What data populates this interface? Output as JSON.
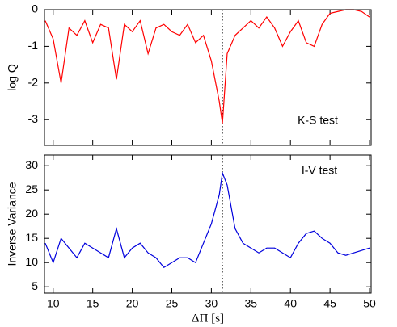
{
  "chart_data": [
    {
      "type": "line",
      "ylabel": "log Q",
      "annotation": "K-S test",
      "x": [
        9,
        10,
        11,
        12,
        13,
        14,
        15,
        16,
        17,
        18,
        19,
        20,
        21,
        22,
        23,
        24,
        25,
        26,
        27,
        28,
        29,
        30,
        31,
        31.4,
        32,
        33,
        34,
        35,
        36,
        37,
        38,
        39,
        40,
        41,
        42,
        43,
        44,
        45,
        46,
        47,
        48,
        49,
        50
      ],
      "series": [
        {
          "color": "#ff0000",
          "values": [
            -0.3,
            -0.8,
            -2.0,
            -0.5,
            -0.7,
            -0.3,
            -0.9,
            -0.4,
            -0.5,
            -1.9,
            -0.4,
            -0.6,
            -0.3,
            -1.2,
            -0.5,
            -0.4,
            -0.6,
            -0.7,
            -0.4,
            -0.9,
            -0.7,
            -1.4,
            -2.5,
            -3.1,
            -1.2,
            -0.7,
            -0.5,
            -0.3,
            -0.5,
            -0.2,
            -0.5,
            -1.0,
            -0.6,
            -0.3,
            -0.9,
            -1.0,
            -0.4,
            -0.1,
            -0.05,
            0,
            0,
            -0.05,
            -0.2
          ]
        }
      ],
      "xlim": [
        8.9,
        50.2
      ],
      "xticks": [
        10,
        15,
        20,
        25,
        30,
        35,
        40,
        45,
        50
      ],
      "ylim": [
        -3.7,
        0
      ],
      "yticks": [
        0,
        -1,
        -2,
        -3
      ],
      "vline": 31.4
    },
    {
      "type": "line",
      "ylabel": "Inverse Variance",
      "xlabel": "ΔΠ [s]",
      "annotation": "I-V test",
      "x": [
        9,
        10,
        11,
        12,
        13,
        14,
        15,
        16,
        17,
        18,
        19,
        20,
        21,
        22,
        23,
        24,
        25,
        26,
        27,
        28,
        29,
        30,
        31,
        31.4,
        32,
        33,
        34,
        35,
        36,
        37,
        38,
        39,
        40,
        41,
        42,
        43,
        44,
        45,
        46,
        47,
        48,
        49,
        50
      ],
      "series": [
        {
          "color": "#0000dd",
          "values": [
            14,
            10,
            15,
            13,
            11,
            14,
            13,
            12,
            11,
            17,
            11,
            13,
            14,
            12,
            11,
            9,
            10,
            11,
            11,
            10,
            14,
            18,
            24,
            28.5,
            26,
            17,
            14,
            13,
            12,
            13,
            13,
            12,
            11,
            14,
            16,
            16.5,
            15,
            14,
            12,
            11.5,
            12,
            12.5,
            13
          ]
        }
      ],
      "xlim": [
        8.9,
        50.2
      ],
      "xticks": [
        10,
        15,
        20,
        25,
        30,
        35,
        40,
        45,
        50
      ],
      "ylim": [
        3.7,
        32.2
      ],
      "yticks": [
        5,
        10,
        15,
        20,
        25,
        30
      ],
      "vline": 31.4
    }
  ]
}
